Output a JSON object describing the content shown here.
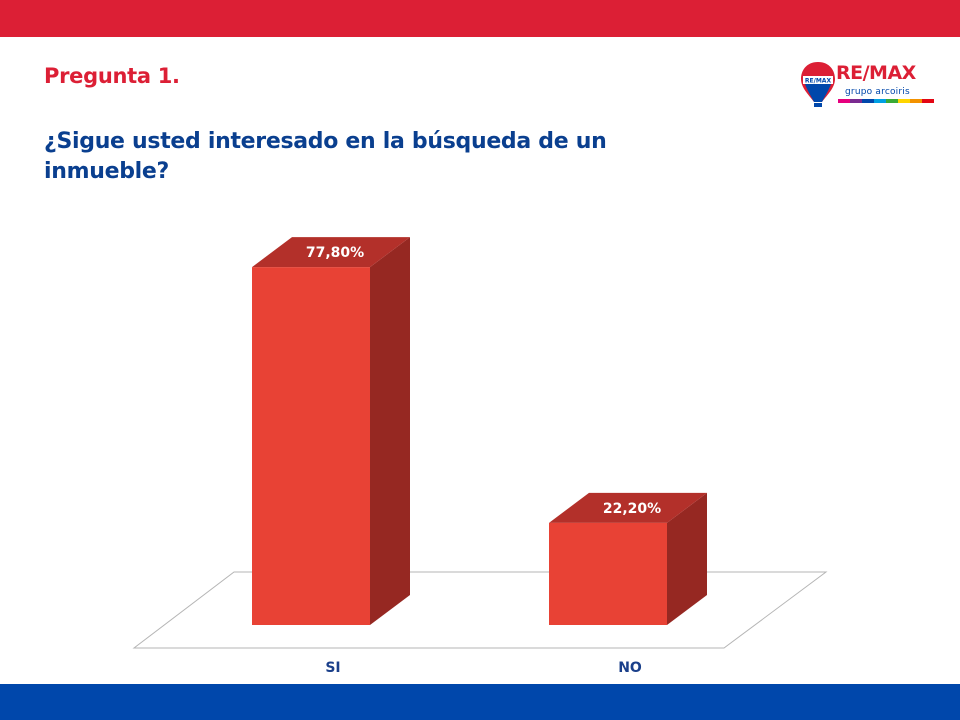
{
  "header": {
    "question_number": "Pregunta 1.",
    "question_text": "¿Sigue usted interesado en la búsqueda de un inmueble?"
  },
  "logo": {
    "wordmark": "RE/MAX",
    "subtitle": "grupo arcoiris",
    "balloon_text": "RE/MAX",
    "stripe_colors": [
      "#e6007e",
      "#7a2a90",
      "#0047ab",
      "#00a0e3",
      "#3aaa35",
      "#ffd500",
      "#f39200",
      "#e30613"
    ]
  },
  "colors": {
    "brand_red": "#dc1f35",
    "brand_blue": "#0047ab",
    "bar_front": "#e84235",
    "bar_side": "#962822",
    "bar_top": "#b3302a"
  },
  "chart_data": {
    "type": "bar",
    "categories": [
      "SI",
      "NO"
    ],
    "values": [
      77.8,
      22.2
    ],
    "value_labels": [
      "77,80%",
      "22,20%"
    ],
    "ylim": [
      0,
      100
    ],
    "grid": false,
    "legend": "none",
    "style": "3d"
  }
}
